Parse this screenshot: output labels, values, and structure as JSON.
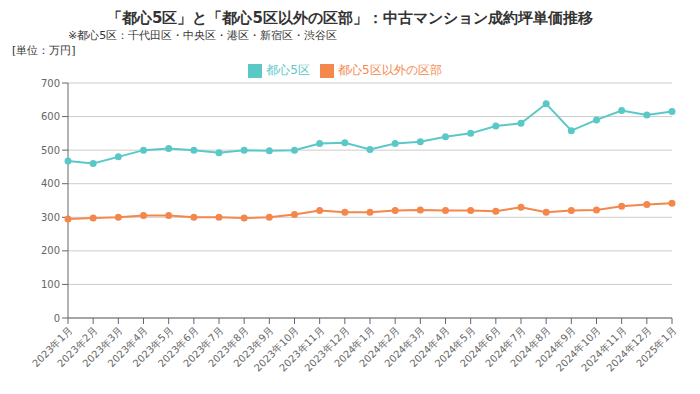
{
  "chart_data": {
    "type": "line",
    "title": "「都心5区」と「都心5区以外の区部」：中古マンション成約坪単価推移",
    "subtitle": "※都心5区：千代田区・中央区・港区・新宿区・渋谷区",
    "ylabel": "[単位：万円]",
    "categories": [
      "2023年1月",
      "2023年2月",
      "2023年3月",
      "2023年4月",
      "2023年5月",
      "2023年6月",
      "2023年7月",
      "2023年8月",
      "2023年9月",
      "2023年10月",
      "2023年11月",
      "2023年12月",
      "2024年1月",
      "2024年2月",
      "2024年3月",
      "2024年4月",
      "2024年5月",
      "2024年6月",
      "2024年7月",
      "2024年8月",
      "2024年9月",
      "2024年10月",
      "2024年11月",
      "2024年12月",
      "2025年1月"
    ],
    "series": [
      {
        "name": "都心5区",
        "color": "#5BC8C8",
        "values": [
          468,
          460,
          480,
          500,
          505,
          500,
          492,
          500,
          498,
          500,
          520,
          522,
          502,
          520,
          525,
          540,
          550,
          572,
          580,
          638,
          558,
          590,
          618,
          605,
          615
        ]
      },
      {
        "name": "都心5区以外の区部",
        "color": "#F4874B",
        "values": [
          295,
          298,
          300,
          305,
          305,
          300,
          300,
          298,
          300,
          308,
          320,
          315,
          315,
          320,
          322,
          320,
          320,
          318,
          330,
          315,
          320,
          322,
          333,
          338,
          342
        ]
      }
    ],
    "ylim": [
      0,
      700
    ],
    "yticks": [
      0,
      100,
      200,
      300,
      400,
      500,
      600,
      700
    ],
    "grid": true,
    "legend": "top",
    "marker": "circle"
  }
}
